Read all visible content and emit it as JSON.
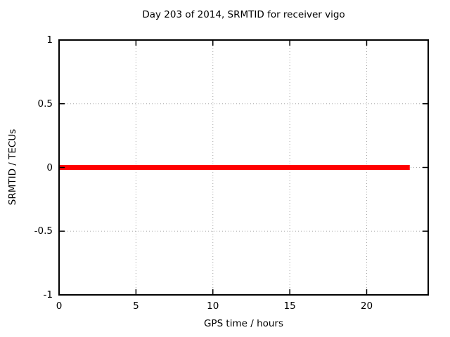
{
  "chart_data": {
    "type": "line",
    "title": "Day 203 of 2014, SRMTID for receiver vigo",
    "xlabel": "GPS time / hours",
    "ylabel": "SRMTID / TECUs",
    "xlim": [
      0,
      24
    ],
    "ylim": [
      -1,
      1
    ],
    "xtick_values": [
      0,
      5,
      10,
      15,
      20
    ],
    "xtick_labels": [
      "0",
      "5",
      "10",
      "15",
      "20"
    ],
    "ytick_values": [
      -1,
      -0.5,
      0,
      0.5,
      1
    ],
    "ytick_labels": [
      "-1",
      "-0.5",
      "0",
      "0.5",
      "1"
    ],
    "grid": "dotted",
    "grid_color": "#a8a8a8",
    "axis_color": "#000000",
    "background_color": "#ffffff",
    "legend": "none",
    "series": [
      {
        "name": "SRMTID",
        "color": "#ff0000",
        "linewidth": 7,
        "x": [
          0,
          22.8
        ],
        "y": [
          0,
          0
        ]
      }
    ]
  }
}
